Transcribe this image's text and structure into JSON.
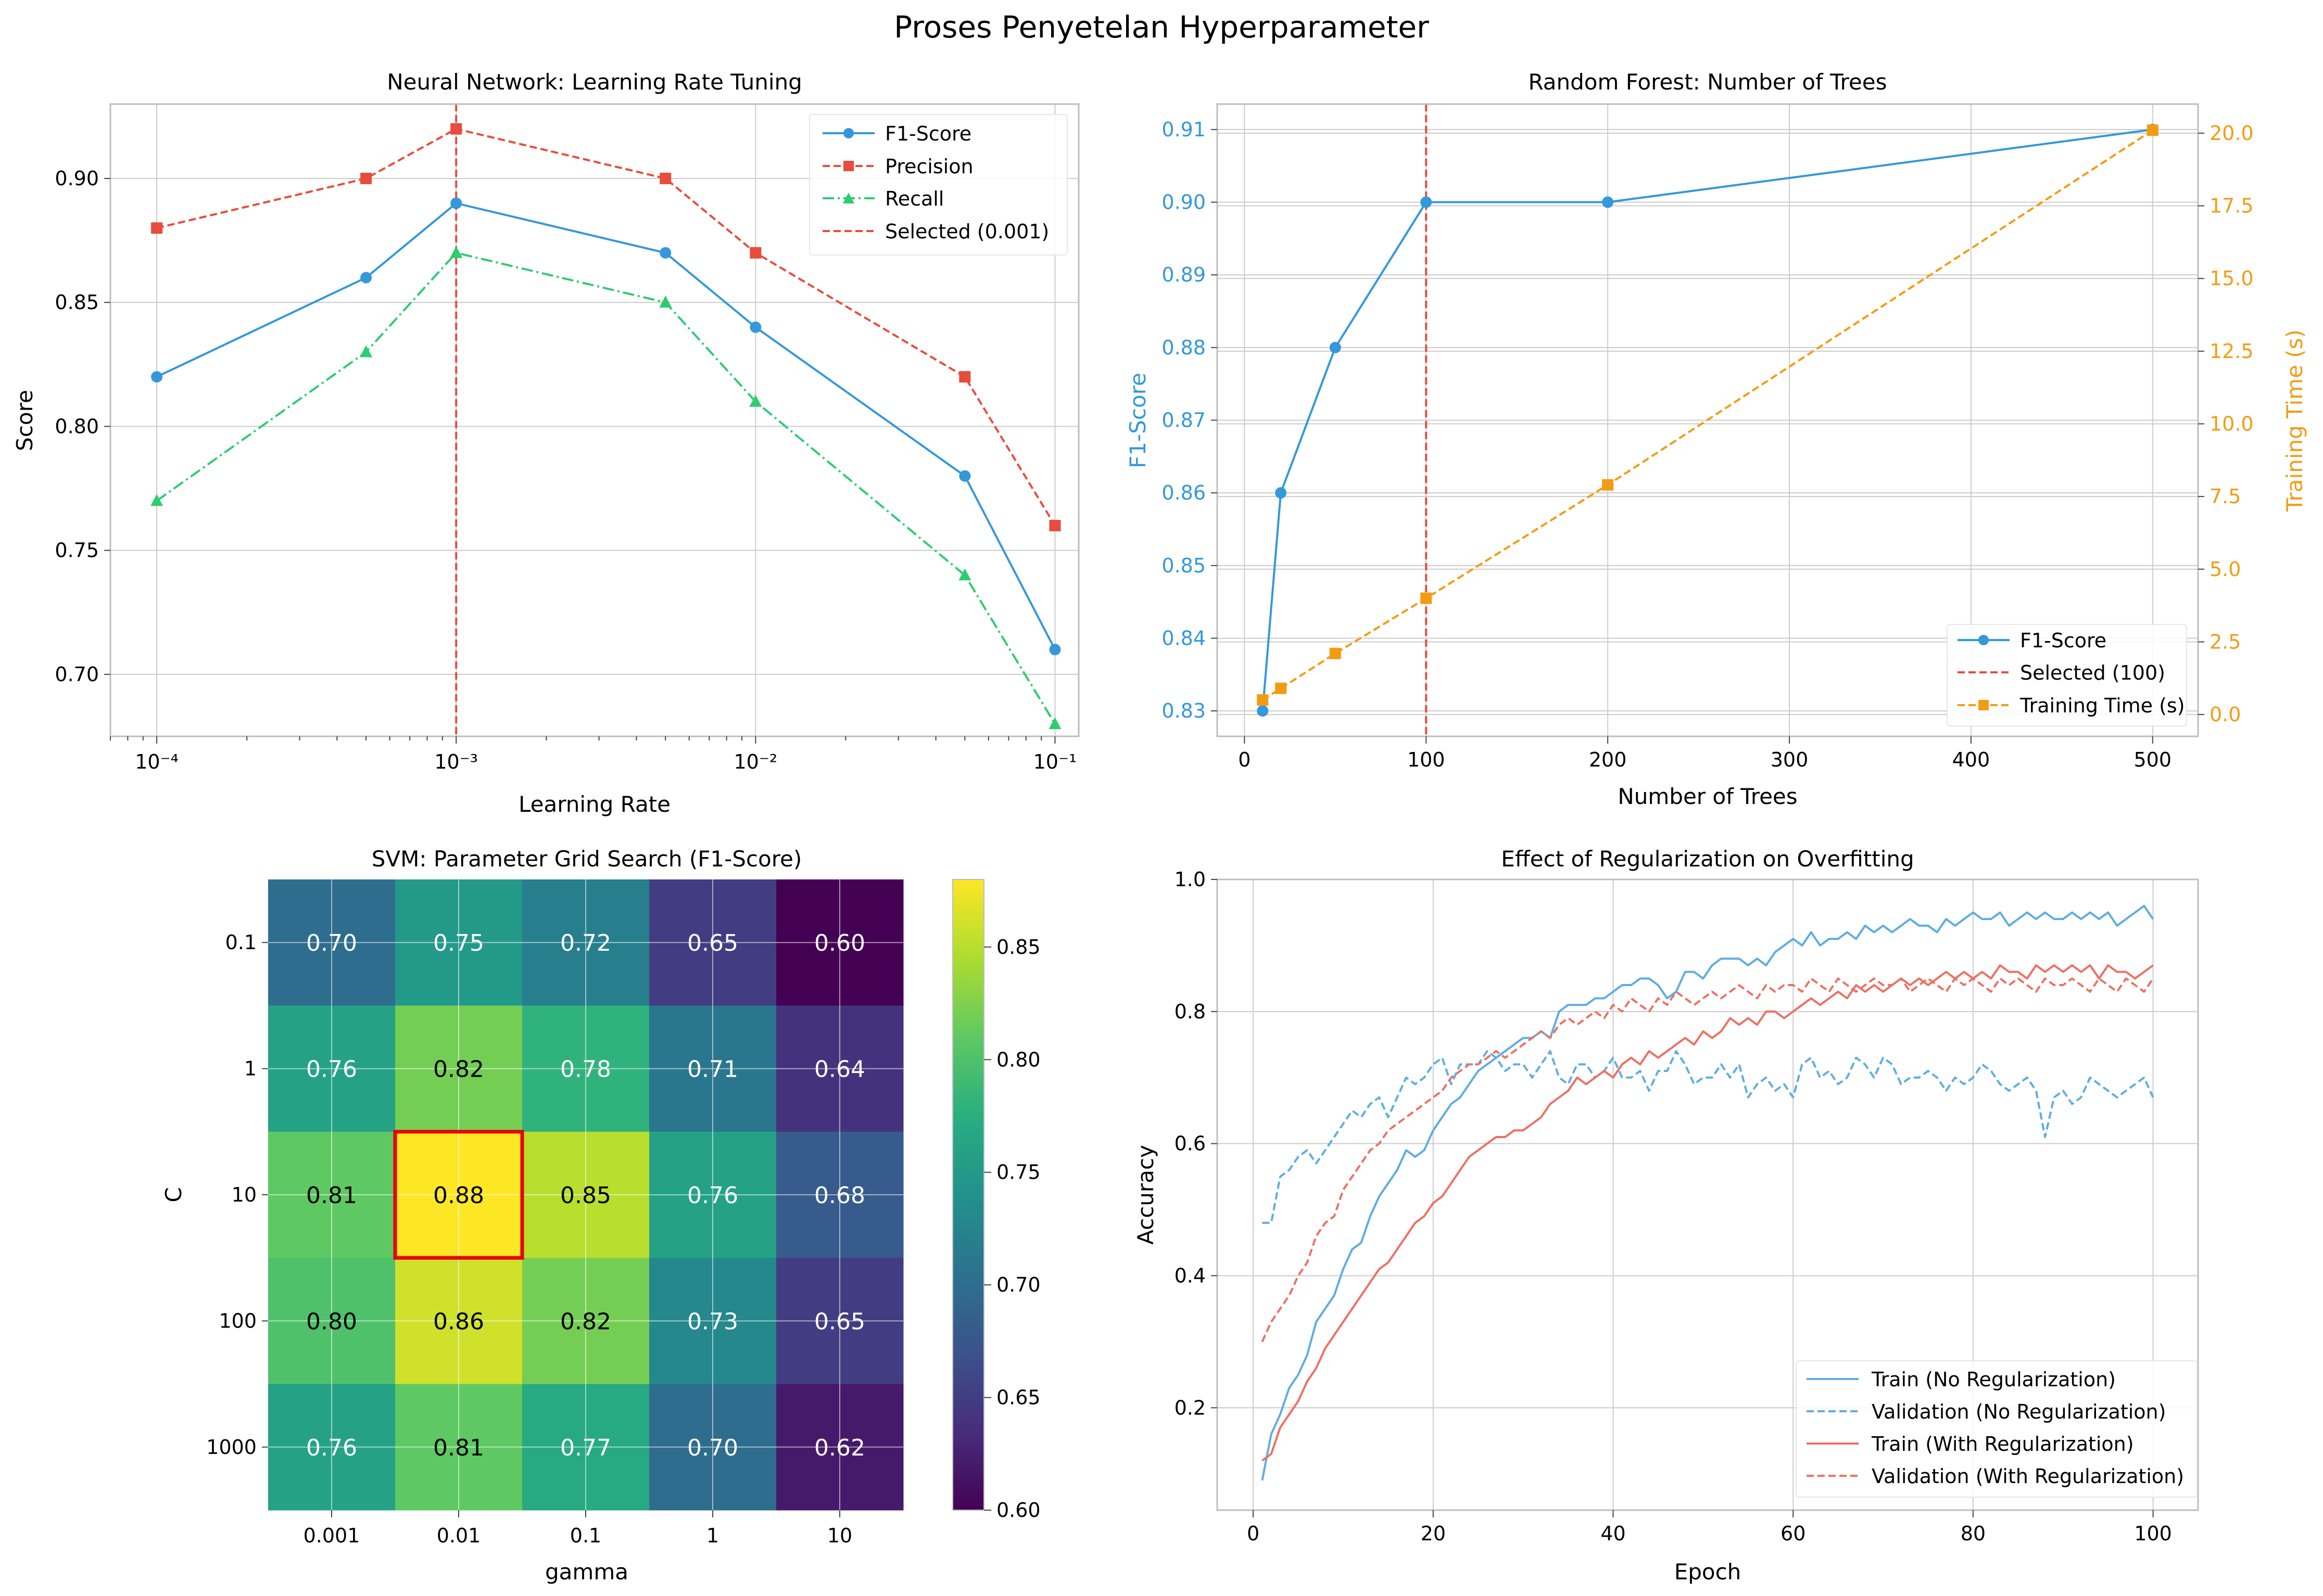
{
  "figure_title": "Proses Penyetelan Hyperparameter",
  "colors": {
    "blue": "#3498db",
    "red": "#e74c3c",
    "green": "#2ecc71",
    "orange": "#f39c12",
    "train_no_reg": "#5dade2",
    "train_reg": "#ec7063",
    "highlight": "#e60000",
    "grid": "#cccccc",
    "spine": "#bdbdbd"
  },
  "chart_data": [
    {
      "type": "line",
      "title": "Neural Network: Learning Rate Tuning",
      "xlabel": "Learning Rate",
      "ylabel": "Score",
      "xscale": "log",
      "xlim": [
        7e-05,
        0.12
      ],
      "ylim": [
        0.675,
        0.93
      ],
      "x": [
        0.0001,
        0.0005,
        0.001,
        0.005,
        0.01,
        0.05,
        0.1
      ],
      "xticks": [
        {
          "value": 0.0001,
          "label": "10⁻⁴"
        },
        {
          "value": 0.001,
          "label": "10⁻³"
        },
        {
          "value": 0.01,
          "label": "10⁻²"
        },
        {
          "value": 0.1,
          "label": "10⁻¹"
        }
      ],
      "yticks": [
        0.7,
        0.75,
        0.8,
        0.85,
        0.9
      ],
      "ytick_labels": [
        "0.70",
        "0.75",
        "0.80",
        "0.85",
        "0.90"
      ],
      "series": [
        {
          "name": "F1-Score",
          "color": "#3498db",
          "dash": "solid",
          "marker": "circle",
          "values": [
            0.82,
            0.86,
            0.89,
            0.87,
            0.84,
            0.78,
            0.71
          ]
        },
        {
          "name": "Precision",
          "color": "#e74c3c",
          "dash": "dashed",
          "marker": "square",
          "values": [
            0.88,
            0.9,
            0.92,
            0.9,
            0.87,
            0.82,
            0.76
          ]
        },
        {
          "name": "Recall",
          "color": "#2ecc71",
          "dash": "dashdot",
          "marker": "triangle",
          "values": [
            0.77,
            0.83,
            0.87,
            0.85,
            0.81,
            0.74,
            0.68
          ]
        }
      ],
      "vline": {
        "x": 0.001,
        "label": "Selected (0.001)",
        "color": "#e74c3c"
      },
      "grid": true,
      "legend": "top-right"
    },
    {
      "type": "line",
      "title": "Random Forest: Number of Trees",
      "xlabel": "Number of Trees",
      "ylabel": "F1-Score",
      "ylabel_right": "Training Time (s)",
      "xlim": [
        -15,
        525
      ],
      "ylim": [
        0.8265,
        0.9135
      ],
      "ylim_right": [
        -0.75,
        21.0
      ],
      "xticks": [
        0,
        100,
        200,
        300,
        400,
        500
      ],
      "yticks": [
        0.83,
        0.84,
        0.85,
        0.86,
        0.87,
        0.88,
        0.89,
        0.9,
        0.91
      ],
      "ytick_labels": [
        "0.83",
        "0.84",
        "0.85",
        "0.86",
        "0.87",
        "0.88",
        "0.89",
        "0.90",
        "0.91"
      ],
      "yticks_right": [
        0.0,
        2.5,
        5.0,
        7.5,
        10.0,
        12.5,
        15.0,
        17.5,
        20.0
      ],
      "ytick_labels_right": [
        "0.0",
        "2.5",
        "5.0",
        "7.5",
        "10.0",
        "12.5",
        "15.0",
        "17.5",
        "20.0"
      ],
      "x": [
        10,
        20,
        50,
        100,
        200,
        500
      ],
      "series": [
        {
          "name": "F1-Score",
          "axis": "left",
          "color": "#3498db",
          "dash": "solid",
          "marker": "circle",
          "values": [
            0.83,
            0.86,
            0.88,
            0.9,
            0.9,
            0.91
          ]
        },
        {
          "name": "Training Time (s)",
          "axis": "right",
          "color": "#f39c12",
          "dash": "dashed",
          "marker": "square",
          "values": [
            0.5,
            0.9,
            2.1,
            4.0,
            7.9,
            20.1
          ]
        }
      ],
      "vline": {
        "x": 100,
        "label": "Selected (100)",
        "color": "#e74c3c"
      },
      "grid": true,
      "legend": "bottom-right"
    },
    {
      "type": "heatmap",
      "title": "SVM: Parameter Grid Search (F1-Score)",
      "xlabel": "gamma",
      "ylabel": "C",
      "x_categories": [
        "0.001",
        "0.01",
        "0.1",
        "1",
        "10"
      ],
      "y_categories": [
        "0.1",
        "1",
        "10",
        "100",
        "1000"
      ],
      "values": [
        [
          0.7,
          0.75,
          0.72,
          0.65,
          0.6
        ],
        [
          0.76,
          0.82,
          0.78,
          0.71,
          0.64
        ],
        [
          0.81,
          0.88,
          0.85,
          0.76,
          0.68
        ],
        [
          0.8,
          0.86,
          0.82,
          0.73,
          0.65
        ],
        [
          0.76,
          0.81,
          0.77,
          0.7,
          0.62
        ]
      ],
      "cell_labels": [
        [
          "0.70",
          "0.75",
          "0.72",
          "0.65",
          "0.60"
        ],
        [
          "0.76",
          "0.82",
          "0.78",
          "0.71",
          "0.64"
        ],
        [
          "0.81",
          "0.88",
          "0.85",
          "0.76",
          "0.68"
        ],
        [
          "0.80",
          "0.86",
          "0.82",
          "0.73",
          "0.65"
        ],
        [
          "0.76",
          "0.81",
          "0.77",
          "0.70",
          "0.62"
        ]
      ],
      "colormap": "viridis",
      "vmin": 0.6,
      "vmax": 0.88,
      "colorbar_ticks": [
        0.6,
        0.65,
        0.7,
        0.75,
        0.8,
        0.85
      ],
      "colorbar_tick_labels": [
        "0.60",
        "0.65",
        "0.70",
        "0.75",
        "0.80",
        "0.85"
      ],
      "highlight": {
        "row": 2,
        "col": 1
      },
      "grid": true
    },
    {
      "type": "line",
      "title": "Effect of Regularization on Overfitting",
      "xlabel": "Epoch",
      "ylabel": "Accuracy",
      "xlim": [
        -4,
        105
      ],
      "ylim": [
        0.045,
        1.0
      ],
      "xticks": [
        0,
        20,
        40,
        60,
        80,
        100
      ],
      "yticks": [
        0.2,
        0.4,
        0.6,
        0.8,
        1.0
      ],
      "ytick_labels": [
        "0.2",
        "0.4",
        "0.6",
        "0.8",
        "1.0"
      ],
      "x": [
        1,
        2,
        3,
        4,
        5,
        6,
        7,
        8,
        9,
        10,
        11,
        12,
        13,
        14,
        15,
        16,
        17,
        18,
        19,
        20,
        21,
        22,
        23,
        24,
        25,
        26,
        27,
        28,
        29,
        30,
        31,
        32,
        33,
        34,
        35,
        36,
        37,
        38,
        39,
        40,
        41,
        42,
        43,
        44,
        45,
        46,
        47,
        48,
        49,
        50,
        51,
        52,
        53,
        54,
        55,
        56,
        57,
        58,
        59,
        60,
        61,
        62,
        63,
        64,
        65,
        66,
        67,
        68,
        69,
        70,
        71,
        72,
        73,
        74,
        75,
        76,
        77,
        78,
        79,
        80,
        81,
        82,
        83,
        84,
        85,
        86,
        87,
        88,
        89,
        90,
        91,
        92,
        93,
        94,
        95,
        96,
        97,
        98,
        99,
        100
      ],
      "series": [
        {
          "name": "Train (No Regularization)",
          "color": "#5dade2",
          "dash": "solid",
          "values": [
            0.09,
            0.16,
            0.19,
            0.23,
            0.25,
            0.28,
            0.33,
            0.35,
            0.37,
            0.41,
            0.44,
            0.45,
            0.49,
            0.52,
            0.54,
            0.56,
            0.59,
            0.58,
            0.59,
            0.62,
            0.64,
            0.66,
            0.67,
            0.69,
            0.71,
            0.72,
            0.73,
            0.74,
            0.75,
            0.76,
            0.76,
            0.77,
            0.76,
            0.8,
            0.81,
            0.81,
            0.81,
            0.82,
            0.82,
            0.83,
            0.84,
            0.84,
            0.85,
            0.85,
            0.84,
            0.82,
            0.83,
            0.86,
            0.86,
            0.85,
            0.87,
            0.88,
            0.88,
            0.88,
            0.87,
            0.88,
            0.87,
            0.89,
            0.9,
            0.91,
            0.9,
            0.92,
            0.9,
            0.91,
            0.91,
            0.92,
            0.91,
            0.93,
            0.92,
            0.93,
            0.92,
            0.93,
            0.94,
            0.93,
            0.93,
            0.92,
            0.94,
            0.93,
            0.94,
            0.95,
            0.94,
            0.94,
            0.95,
            0.93,
            0.94,
            0.95,
            0.94,
            0.95,
            0.94,
            0.94,
            0.95,
            0.94,
            0.95,
            0.94,
            0.95,
            0.93,
            0.94,
            0.95,
            0.96,
            0.94
          ]
        },
        {
          "name": "Validation (No Regularization)",
          "color": "#5dade2",
          "dash": "dashed",
          "values": [
            0.48,
            0.48,
            0.55,
            0.56,
            0.58,
            0.59,
            0.57,
            0.59,
            0.61,
            0.63,
            0.65,
            0.64,
            0.66,
            0.67,
            0.64,
            0.67,
            0.7,
            0.69,
            0.7,
            0.72,
            0.73,
            0.69,
            0.72,
            0.72,
            0.72,
            0.74,
            0.73,
            0.71,
            0.72,
            0.72,
            0.7,
            0.72,
            0.74,
            0.7,
            0.69,
            0.72,
            0.72,
            0.7,
            0.71,
            0.73,
            0.7,
            0.7,
            0.71,
            0.68,
            0.71,
            0.71,
            0.74,
            0.72,
            0.69,
            0.7,
            0.7,
            0.72,
            0.7,
            0.72,
            0.67,
            0.69,
            0.7,
            0.68,
            0.69,
            0.67,
            0.72,
            0.73,
            0.7,
            0.71,
            0.69,
            0.7,
            0.73,
            0.72,
            0.7,
            0.73,
            0.72,
            0.69,
            0.7,
            0.7,
            0.71,
            0.7,
            0.68,
            0.7,
            0.69,
            0.7,
            0.72,
            0.71,
            0.69,
            0.68,
            0.69,
            0.7,
            0.68,
            0.61,
            0.67,
            0.68,
            0.66,
            0.67,
            0.7,
            0.69,
            0.68,
            0.67,
            0.68,
            0.69,
            0.7,
            0.67
          ]
        },
        {
          "name": "Train (With Regularization)",
          "color": "#ec7063",
          "dash": "solid",
          "values": [
            0.12,
            0.13,
            0.17,
            0.19,
            0.21,
            0.24,
            0.26,
            0.29,
            0.31,
            0.33,
            0.35,
            0.37,
            0.39,
            0.41,
            0.42,
            0.44,
            0.46,
            0.48,
            0.49,
            0.51,
            0.52,
            0.54,
            0.56,
            0.58,
            0.59,
            0.6,
            0.61,
            0.61,
            0.62,
            0.62,
            0.63,
            0.64,
            0.66,
            0.67,
            0.68,
            0.7,
            0.69,
            0.7,
            0.71,
            0.7,
            0.72,
            0.73,
            0.72,
            0.74,
            0.73,
            0.74,
            0.75,
            0.76,
            0.75,
            0.77,
            0.76,
            0.77,
            0.79,
            0.78,
            0.79,
            0.78,
            0.8,
            0.8,
            0.79,
            0.8,
            0.81,
            0.82,
            0.81,
            0.82,
            0.83,
            0.82,
            0.84,
            0.83,
            0.84,
            0.83,
            0.84,
            0.85,
            0.84,
            0.85,
            0.84,
            0.85,
            0.86,
            0.85,
            0.86,
            0.85,
            0.86,
            0.85,
            0.87,
            0.86,
            0.86,
            0.85,
            0.87,
            0.86,
            0.87,
            0.86,
            0.87,
            0.86,
            0.87,
            0.85,
            0.87,
            0.86,
            0.86,
            0.85,
            0.86,
            0.87
          ]
        },
        {
          "name": "Validation (With Regularization)",
          "color": "#ec7063",
          "dash": "dashed",
          "values": [
            0.3,
            0.33,
            0.35,
            0.37,
            0.4,
            0.42,
            0.46,
            0.48,
            0.49,
            0.53,
            0.55,
            0.57,
            0.59,
            0.6,
            0.62,
            0.63,
            0.64,
            0.65,
            0.66,
            0.67,
            0.68,
            0.7,
            0.71,
            0.72,
            0.72,
            0.73,
            0.74,
            0.73,
            0.74,
            0.75,
            0.76,
            0.77,
            0.76,
            0.78,
            0.79,
            0.78,
            0.79,
            0.8,
            0.79,
            0.81,
            0.8,
            0.82,
            0.81,
            0.8,
            0.82,
            0.81,
            0.83,
            0.82,
            0.81,
            0.82,
            0.83,
            0.82,
            0.83,
            0.84,
            0.83,
            0.82,
            0.84,
            0.83,
            0.84,
            0.84,
            0.83,
            0.85,
            0.84,
            0.83,
            0.85,
            0.84,
            0.83,
            0.84,
            0.85,
            0.84,
            0.84,
            0.85,
            0.83,
            0.84,
            0.85,
            0.84,
            0.83,
            0.85,
            0.84,
            0.85,
            0.84,
            0.83,
            0.85,
            0.84,
            0.85,
            0.84,
            0.83,
            0.85,
            0.84,
            0.84,
            0.85,
            0.84,
            0.83,
            0.85,
            0.84,
            0.83,
            0.85,
            0.84,
            0.83,
            0.85
          ]
        }
      ],
      "grid": true,
      "legend": "bottom-right"
    }
  ]
}
